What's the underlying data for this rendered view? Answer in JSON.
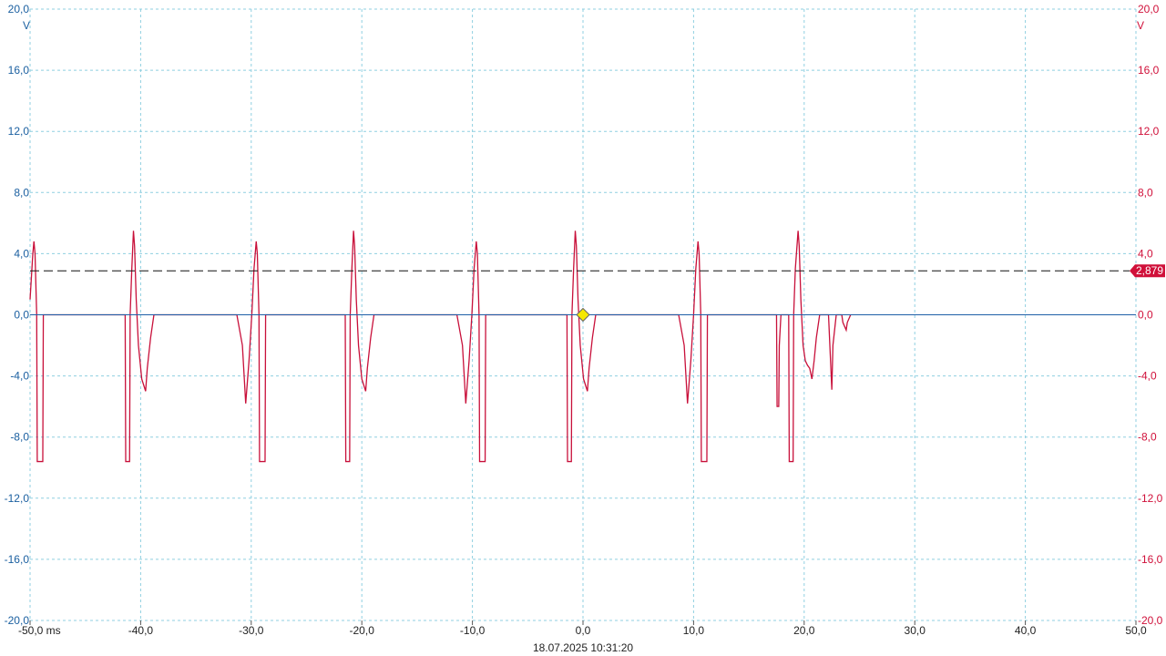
{
  "chart_data": {
    "type": "line",
    "x": [
      -50,
      -49.75,
      -49.65,
      -49.55,
      -49.4,
      -49.35,
      -48.85,
      -48.8,
      -41.4,
      -41.35,
      -41.0,
      -40.95,
      -40.8,
      -40.65,
      -40.55,
      -40.4,
      -40.2,
      -39.9,
      -39.55,
      -39.4,
      -39.1,
      -38.8,
      -31.3,
      -30.8,
      -30.5,
      -30.2,
      -29.95,
      -29.75,
      -29.55,
      -29.45,
      -29.3,
      -29.25,
      -28.75,
      -28.7,
      -21.5,
      -21.45,
      -21.1,
      -21.05,
      -20.9,
      -20.75,
      -20.65,
      -20.5,
      -20.3,
      -20.0,
      -19.65,
      -19.5,
      -19.2,
      -18.9,
      -11.4,
      -10.9,
      -10.6,
      -10.3,
      -10.05,
      -9.85,
      -9.65,
      -9.55,
      -9.4,
      -9.35,
      -8.85,
      -8.8,
      -1.45,
      -1.4,
      -1.05,
      -1.0,
      -0.85,
      -0.7,
      -0.6,
      -0.45,
      -0.25,
      0.05,
      0.4,
      0.55,
      0.85,
      1.15,
      8.65,
      9.15,
      9.45,
      9.75,
      10.0,
      10.2,
      10.4,
      10.5,
      10.65,
      10.7,
      11.2,
      11.25,
      17.5,
      17.55,
      17.7,
      17.75,
      17.9,
      18.6,
      18.65,
      19.0,
      19.05,
      19.2,
      19.45,
      19.55,
      19.7,
      19.9,
      20.1,
      20.3,
      20.5,
      20.7,
      20.9,
      21.1,
      21.4,
      22.2,
      22.5,
      22.6,
      22.9,
      23.4,
      23.5,
      23.8,
      23.9,
      24.2
    ],
    "values": [
      1,
      4,
      4.8,
      4,
      0,
      -9.6,
      -9.6,
      0,
      0,
      -9.6,
      -9.6,
      0,
      3,
      5.5,
      4.5,
      1,
      -2,
      -4.2,
      -5,
      -3.5,
      -1.5,
      0,
      0,
      -2,
      -5.8,
      -3,
      0,
      3,
      4.8,
      4,
      0,
      -9.6,
      -9.6,
      0,
      0,
      -9.6,
      -9.6,
      0,
      3,
      5.5,
      4.5,
      1,
      -2,
      -4.2,
      -5,
      -3.5,
      -1.5,
      0,
      0,
      -2,
      -5.8,
      -3,
      0,
      3,
      4.8,
      4,
      0,
      -9.6,
      -9.6,
      0,
      0,
      -9.6,
      -9.6,
      0,
      3,
      5.5,
      4.5,
      1,
      -2,
      -4.2,
      -5,
      -3.5,
      -1.5,
      0,
      0,
      -2,
      -5.8,
      -3,
      0,
      3,
      4.8,
      4,
      0,
      -9.6,
      -9.6,
      0,
      0,
      -6,
      -6,
      -2,
      0,
      0,
      -9.6,
      -9.6,
      0,
      3,
      5.5,
      4.5,
      1,
      -2,
      -3,
      -3.3,
      -3.5,
      -4.2,
      -3,
      -1.5,
      0,
      0,
      -4.9,
      -2,
      0,
      0,
      -0.5,
      -1,
      -0.5,
      0
    ],
    "color": "#c8103a",
    "xlim": [
      -50,
      50
    ],
    "xticks": [
      {
        "value": -50,
        "label": "-50,0 ms"
      },
      {
        "value": -40,
        "label": "-40,0"
      },
      {
        "value": -30,
        "label": "-30,0"
      },
      {
        "value": -20,
        "label": "-20,0"
      },
      {
        "value": -10,
        "label": "-10,0"
      },
      {
        "value": 0,
        "label": "0,0"
      },
      {
        "value": 10,
        "label": "10,0"
      },
      {
        "value": 20,
        "label": "20,0"
      },
      {
        "value": 30,
        "label": "30,0"
      },
      {
        "value": 40,
        "label": "40,0"
      },
      {
        "value": 50,
        "label": "50,0"
      }
    ],
    "ylim": [
      -20,
      20
    ],
    "yticks": [
      {
        "value": 20,
        "label": "20,0"
      },
      {
        "value": 16,
        "label": "16,0"
      },
      {
        "value": 12,
        "label": "12,0"
      },
      {
        "value": 8,
        "label": "8,0"
      },
      {
        "value": 4,
        "label": "4,0"
      },
      {
        "value": 0,
        "label": "0,0"
      },
      {
        "value": -4,
        "label": "-4,0"
      },
      {
        "value": -8,
        "label": "-8,0"
      },
      {
        "value": -12,
        "label": "-12,0"
      },
      {
        "value": -16,
        "label": "-16,0"
      },
      {
        "value": -20,
        "label": "-20,0"
      }
    ],
    "y_unit": "V",
    "y2lim": [
      -20,
      20
    ],
    "y2ticks": [
      {
        "value": 20,
        "label": "20,0"
      },
      {
        "value": 16,
        "label": "16,0"
      },
      {
        "value": 12,
        "label": "12,0"
      },
      {
        "value": 8,
        "label": "8,0"
      },
      {
        "value": 4,
        "label": "4,0"
      },
      {
        "value": 0,
        "label": "0,0"
      },
      {
        "value": -4,
        "label": "-4,0"
      },
      {
        "value": -8,
        "label": "-8,0"
      },
      {
        "value": -12,
        "label": "-12,0"
      },
      {
        "value": -16,
        "label": "-16,0"
      },
      {
        "value": -20,
        "label": "-20,0"
      }
    ],
    "y2_unit": "V",
    "cursor": {
      "value": 2.879,
      "label": "2,879"
    },
    "trigger": {
      "x": 0,
      "y": 0
    },
    "timestamp": "18.07.2025 10:31:20",
    "grid": true
  }
}
